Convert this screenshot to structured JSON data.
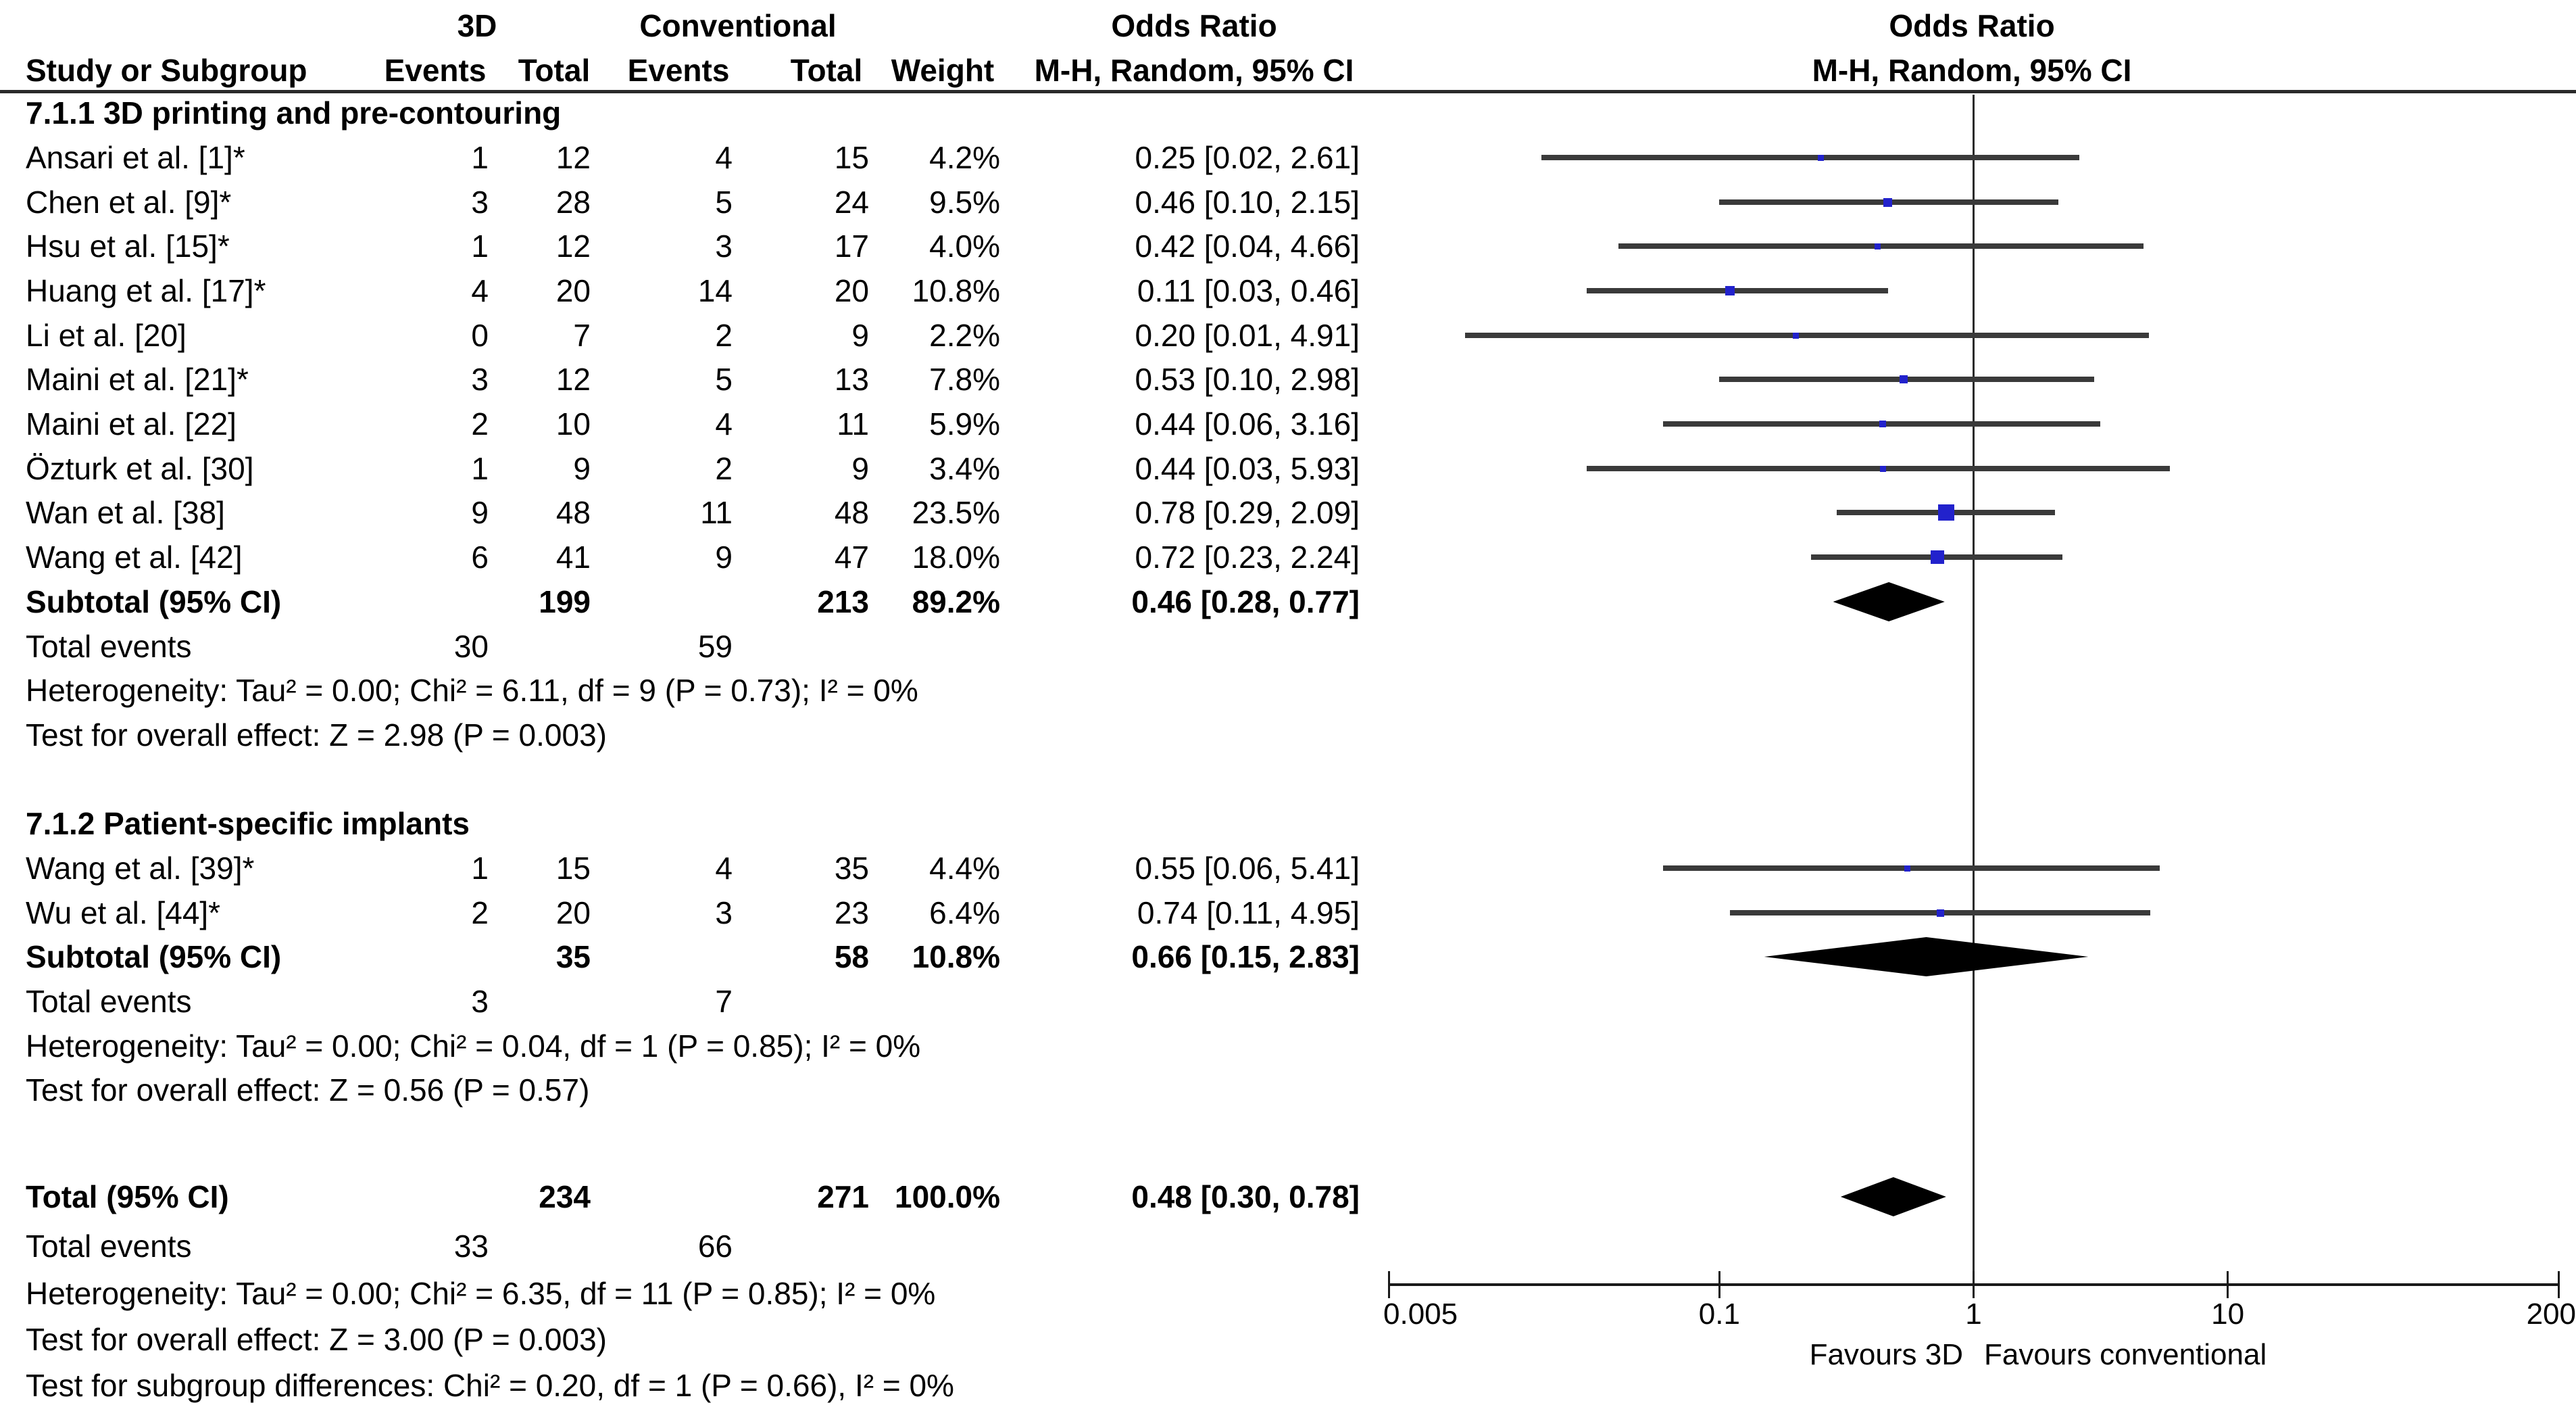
{
  "header": {
    "group1_label": "3D",
    "group2_label": "Conventional",
    "study_col": "Study or Subgroup",
    "events_col": "Events",
    "total_col": "Total",
    "weight_col": "Weight",
    "or_col_title": "Odds Ratio",
    "or_col_sub": "M-H, Random, 95% CI",
    "plot_title": "Odds Ratio",
    "plot_sub": "M-H, Random, 95% CI"
  },
  "chart_data": {
    "type": "scatter",
    "variant": "forest-plot",
    "effect_measure": "Odds Ratio, M-H, Random, 95% CI",
    "x_scale": "log",
    "x_min": 0.005,
    "x_max": 200,
    "x_ticks": [
      "0.005",
      "0.1",
      "1",
      "10",
      "200"
    ],
    "x_tick_values": [
      0.005,
      0.1,
      1,
      10,
      200
    ],
    "null_value": 1,
    "favours_left": "Favours 3D",
    "favours_right": "Favours conventional",
    "colors": {
      "marker": "#2222cc",
      "ci_line": "#3a3a3a",
      "diamond": "#000000",
      "axis": "#1a1a1a"
    },
    "groups": [
      {
        "heading": "7.1.1 3D printing and pre-contouring",
        "studies": [
          {
            "label": "Ansari et al. [1]*",
            "events_3d": "1",
            "total_3d": "12",
            "events_conv": "4",
            "total_conv": "15",
            "weight": "4.2%",
            "weight_pct": 4.2,
            "or_text": "0.25 [0.02, 2.61]",
            "or": 0.25,
            "ci_low": 0.02,
            "ci_high": 2.61
          },
          {
            "label": "Chen et al. [9]*",
            "events_3d": "3",
            "total_3d": "28",
            "events_conv": "5",
            "total_conv": "24",
            "weight": "9.5%",
            "weight_pct": 9.5,
            "or_text": "0.46 [0.10, 2.15]",
            "or": 0.46,
            "ci_low": 0.1,
            "ci_high": 2.15
          },
          {
            "label": "Hsu et al. [15]*",
            "events_3d": "1",
            "total_3d": "12",
            "events_conv": "3",
            "total_conv": "17",
            "weight": "4.0%",
            "weight_pct": 4.0,
            "or_text": "0.42 [0.04, 4.66]",
            "or": 0.42,
            "ci_low": 0.04,
            "ci_high": 4.66
          },
          {
            "label": "Huang et al. [17]*",
            "events_3d": "4",
            "total_3d": "20",
            "events_conv": "14",
            "total_conv": "20",
            "weight": "10.8%",
            "weight_pct": 10.8,
            "or_text": "0.11 [0.03, 0.46]",
            "or": 0.11,
            "ci_low": 0.03,
            "ci_high": 0.46
          },
          {
            "label": "Li et al. [20]",
            "events_3d": "0",
            "total_3d": "7",
            "events_conv": "2",
            "total_conv": "9",
            "weight": "2.2%",
            "weight_pct": 2.2,
            "or_text": "0.20 [0.01, 4.91]",
            "or": 0.2,
            "ci_low": 0.01,
            "ci_high": 4.91
          },
          {
            "label": "Maini et al. [21]*",
            "events_3d": "3",
            "total_3d": "12",
            "events_conv": "5",
            "total_conv": "13",
            "weight": "7.8%",
            "weight_pct": 7.8,
            "or_text": "0.53 [0.10, 2.98]",
            "or": 0.53,
            "ci_low": 0.1,
            "ci_high": 2.98
          },
          {
            "label": "Maini et al. [22]",
            "events_3d": "2",
            "total_3d": "10",
            "events_conv": "4",
            "total_conv": "11",
            "weight": "5.9%",
            "weight_pct": 5.9,
            "or_text": "0.44 [0.06, 3.16]",
            "or": 0.44,
            "ci_low": 0.06,
            "ci_high": 3.16
          },
          {
            "label": "Özturk et al. [30]",
            "events_3d": "1",
            "total_3d": "9",
            "events_conv": "2",
            "total_conv": "9",
            "weight": "3.4%",
            "weight_pct": 3.4,
            "or_text": "0.44 [0.03, 5.93]",
            "or": 0.44,
            "ci_low": 0.03,
            "ci_high": 5.93
          },
          {
            "label": "Wan et al. [38]",
            "events_3d": "9",
            "total_3d": "48",
            "events_conv": "11",
            "total_conv": "48",
            "weight": "23.5%",
            "weight_pct": 23.5,
            "or_text": "0.78 [0.29, 2.09]",
            "or": 0.78,
            "ci_low": 0.29,
            "ci_high": 2.09
          },
          {
            "label": "Wang et al. [42]",
            "events_3d": "6",
            "total_3d": "41",
            "events_conv": "9",
            "total_conv": "47",
            "weight": "18.0%",
            "weight_pct": 18.0,
            "or_text": "0.72 [0.23, 2.24]",
            "or": 0.72,
            "ci_low": 0.23,
            "ci_high": 2.24
          }
        ],
        "subtotal": {
          "label": "Subtotal (95% CI)",
          "total_3d": "199",
          "total_conv": "213",
          "weight": "89.2%",
          "or_text": "0.46 [0.28, 0.77]",
          "or": 0.46,
          "ci_low": 0.28,
          "ci_high": 0.77
        },
        "total_events": {
          "label": "Total events",
          "events_3d": "30",
          "events_conv": "59"
        },
        "heterogeneity": "Heterogeneity: Tau² = 0.00; Chi² = 6.11, df = 9 (P = 0.73); I² = 0%",
        "overall_effect": "Test for overall effect: Z = 2.98 (P = 0.003)"
      },
      {
        "heading": "7.1.2 Patient-specific implants",
        "studies": [
          {
            "label": "Wang et al. [39]*",
            "events_3d": "1",
            "total_3d": "15",
            "events_conv": "4",
            "total_conv": "35",
            "weight": "4.4%",
            "weight_pct": 4.4,
            "or_text": "0.55 [0.06, 5.41]",
            "or": 0.55,
            "ci_low": 0.06,
            "ci_high": 5.41
          },
          {
            "label": "Wu et al. [44]*",
            "events_3d": "2",
            "total_3d": "20",
            "events_conv": "3",
            "total_conv": "23",
            "weight": "6.4%",
            "weight_pct": 6.4,
            "or_text": "0.74 [0.11, 4.95]",
            "or": 0.74,
            "ci_low": 0.11,
            "ci_high": 4.95
          }
        ],
        "subtotal": {
          "label": "Subtotal (95% CI)",
          "total_3d": "35",
          "total_conv": "58",
          "weight": "10.8%",
          "or_text": "0.66 [0.15, 2.83]",
          "or": 0.66,
          "ci_low": 0.15,
          "ci_high": 2.83
        },
        "total_events": {
          "label": "Total events",
          "events_3d": "3",
          "events_conv": "7"
        },
        "heterogeneity": "Heterogeneity: Tau² = 0.00; Chi² = 0.04, df = 1 (P = 0.85); I² = 0%",
        "overall_effect": "Test for overall effect: Z = 0.56 (P = 0.57)"
      }
    ],
    "total": {
      "label": "Total (95% CI)",
      "total_3d": "234",
      "total_conv": "271",
      "weight": "100.0%",
      "or_text": "0.48 [0.30, 0.78]",
      "or": 0.48,
      "ci_low": 0.3,
      "ci_high": 0.78
    },
    "total_events": {
      "label": "Total events",
      "events_3d": "33",
      "events_conv": "66"
    },
    "total_heterogeneity": "Heterogeneity: Tau² = 0.00; Chi² = 6.35, df = 11 (P = 0.85); I² = 0%",
    "total_overall_effect": "Test for overall effect: Z = 3.00 (P = 0.003)",
    "subgroup_differences": "Test for subgroup differences: Chi² = 0.20, df = 1 (P = 0.66), I² = 0%"
  }
}
